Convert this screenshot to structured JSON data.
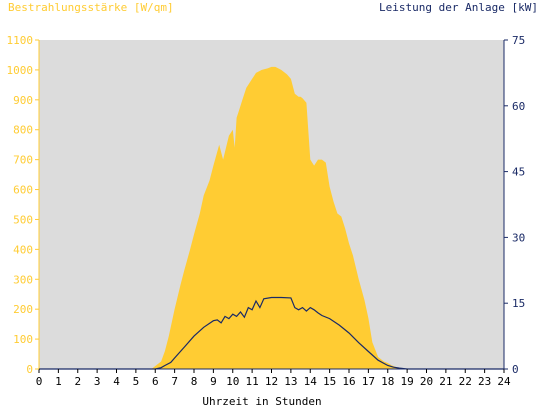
{
  "chart_data": {
    "type": "area",
    "title_left": "Bestrahlungsstärke [W/qm]",
    "title_right": "Leistung der Anlage [kW]",
    "xlabel": "Uhrzeit in Stunden",
    "x_ticks": [
      "0",
      "1",
      "2",
      "3",
      "4",
      "5",
      "6",
      "7",
      "8",
      "9",
      "10",
      "11",
      "12",
      "13",
      "14",
      "15",
      "16",
      "17",
      "18",
      "19",
      "20",
      "21",
      "22",
      "23",
      "24"
    ],
    "y_left_ticks": [
      "0",
      "100",
      "200",
      "300",
      "400",
      "500",
      "600",
      "700",
      "800",
      "900",
      "1000",
      "1100"
    ],
    "y_right_ticks": [
      "0",
      "15",
      "30",
      "45",
      "60",
      "75"
    ],
    "xlim": [
      0,
      24
    ],
    "ylim_left": [
      0,
      1100
    ],
    "ylim_right": [
      0,
      75
    ],
    "grid": false,
    "colors": {
      "irradiance": "#ffcc33",
      "power": "#1a2a66",
      "plot_bg": "#dcdcdc",
      "left_axis_text": "#ffcc33",
      "right_axis_text": "#1a2a66"
    },
    "series": [
      {
        "axis": "left",
        "type": "area",
        "x": [
          0,
          5.8,
          6.0,
          6.3,
          6.5,
          6.7,
          7.0,
          7.3,
          7.5,
          7.8,
          8.0,
          8.3,
          8.5,
          8.8,
          9.0,
          9.3,
          9.5,
          9.8,
          10.0,
          10.1,
          10.2,
          10.3,
          10.4,
          10.5,
          10.7,
          11.0,
          11.2,
          11.5,
          11.8,
          12.0,
          12.2,
          12.5,
          12.8,
          13.0,
          13.2,
          13.4,
          13.5,
          13.6,
          13.8,
          14.0,
          14.2,
          14.4,
          14.6,
          14.8,
          15.0,
          15.2,
          15.4,
          15.6,
          15.8,
          16.0,
          16.2,
          16.5,
          16.8,
          17.0,
          17.2,
          17.5,
          17.8,
          18.0,
          18.2,
          18.5,
          18.8,
          19.0,
          24
        ],
        "values": [
          0,
          0,
          10,
          25,
          60,
          110,
          200,
          280,
          330,
          400,
          450,
          520,
          580,
          630,
          680,
          750,
          700,
          780,
          800,
          740,
          840,
          860,
          880,
          900,
          940,
          970,
          990,
          1000,
          1005,
          1010,
          1010,
          1000,
          985,
          970,
          920,
          910,
          910,
          905,
          890,
          700,
          680,
          700,
          700,
          690,
          610,
          560,
          520,
          510,
          470,
          420,
          380,
          300,
          230,
          170,
          90,
          40,
          25,
          20,
          12,
          5,
          0,
          0,
          0
        ]
      },
      {
        "axis": "right",
        "type": "line",
        "x": [
          0,
          6.0,
          6.3,
          6.5,
          6.8,
          7.0,
          7.5,
          8.0,
          8.5,
          9.0,
          9.2,
          9.4,
          9.6,
          9.8,
          10.0,
          10.2,
          10.4,
          10.6,
          10.8,
          11.0,
          11.2,
          11.4,
          11.6,
          12.0,
          12.5,
          13.0,
          13.2,
          13.4,
          13.6,
          13.8,
          14.0,
          14.2,
          14.4,
          14.6,
          15.0,
          15.5,
          16.0,
          16.5,
          17.0,
          17.5,
          18.0,
          18.3,
          18.6,
          19.0,
          24
        ],
        "values": [
          0,
          0,
          0.3,
          0.8,
          1.5,
          2.5,
          5,
          7.5,
          9.5,
          11,
          11.2,
          10.5,
          12,
          11.5,
          12.5,
          12,
          13,
          11.8,
          14,
          13.5,
          15.5,
          14,
          16,
          16.3,
          16.3,
          16.2,
          14,
          13.5,
          14,
          13.2,
          14,
          13.5,
          12.8,
          12.2,
          11.5,
          10,
          8.2,
          6,
          4,
          2,
          0.8,
          0.4,
          0.2,
          0,
          0
        ]
      }
    ]
  }
}
